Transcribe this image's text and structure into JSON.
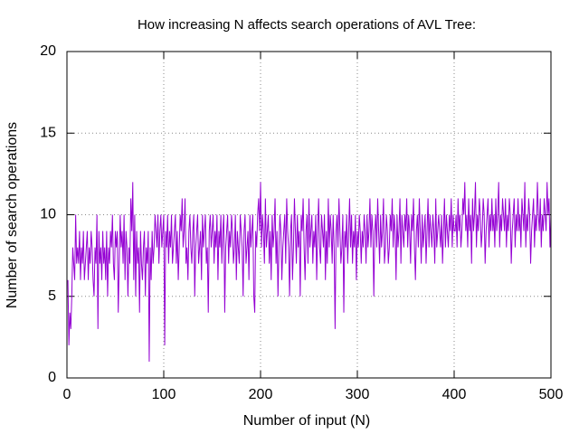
{
  "chart_data": {
    "type": "line",
    "title": "How increasing N affects search operations of AVL Tree:",
    "x_label": "Number of input (N)",
    "y_label": "Number of search operations",
    "color": "#9400d3",
    "grid": true,
    "xlim": [
      0,
      500
    ],
    "xticks": [
      0,
      100,
      200,
      300,
      400,
      500
    ],
    "ylim": [
      0,
      20
    ],
    "yticks": [
      0,
      5,
      10,
      15,
      20
    ],
    "x": [
      1,
      2,
      3,
      4,
      5,
      6,
      7,
      8,
      9,
      10,
      11,
      12,
      13,
      14,
      15,
      16,
      17,
      18,
      19,
      20,
      21,
      22,
      23,
      24,
      25,
      26,
      27,
      28,
      29,
      30,
      31,
      32,
      33,
      34,
      35,
      36,
      37,
      38,
      39,
      40,
      41,
      42,
      43,
      44,
      45,
      46,
      47,
      48,
      49,
      50,
      51,
      52,
      53,
      54,
      55,
      56,
      57,
      58,
      59,
      60,
      61,
      62,
      63,
      64,
      65,
      66,
      67,
      68,
      69,
      70,
      71,
      72,
      73,
      74,
      75,
      76,
      77,
      78,
      79,
      80,
      81,
      82,
      83,
      84,
      85,
      86,
      87,
      88,
      89,
      90,
      91,
      92,
      93,
      94,
      95,
      96,
      97,
      98,
      99,
      100,
      101,
      102,
      103,
      104,
      105,
      106,
      107,
      108,
      109,
      110,
      111,
      112,
      113,
      114,
      115,
      116,
      117,
      118,
      119,
      120,
      121,
      122,
      123,
      124,
      125,
      126,
      127,
      128,
      129,
      130,
      131,
      132,
      133,
      134,
      135,
      136,
      137,
      138,
      139,
      140,
      141,
      142,
      143,
      144,
      145,
      146,
      147,
      148,
      149,
      150,
      151,
      152,
      153,
      154,
      155,
      156,
      157,
      158,
      159,
      160,
      161,
      162,
      163,
      164,
      165,
      166,
      167,
      168,
      169,
      170,
      171,
      172,
      173,
      174,
      175,
      176,
      177,
      178,
      179,
      180,
      181,
      182,
      183,
      184,
      185,
      186,
      187,
      188,
      189,
      190,
      191,
      192,
      193,
      194,
      195,
      196,
      197,
      198,
      199,
      200,
      201,
      202,
      203,
      204,
      205,
      206,
      207,
      208,
      209,
      210,
      211,
      212,
      213,
      214,
      215,
      216,
      217,
      218,
      219,
      220,
      221,
      222,
      223,
      224,
      225,
      226,
      227,
      228,
      229,
      230,
      231,
      232,
      233,
      234,
      235,
      236,
      237,
      238,
      239,
      240,
      241,
      242,
      243,
      244,
      245,
      246,
      247,
      248,
      249,
      250,
      251,
      252,
      253,
      254,
      255,
      256,
      257,
      258,
      259,
      260,
      261,
      262,
      263,
      264,
      265,
      266,
      267,
      268,
      269,
      270,
      271,
      272,
      273,
      274,
      275,
      276,
      277,
      278,
      279,
      280,
      281,
      282,
      283,
      284,
      285,
      286,
      287,
      288,
      289,
      290,
      291,
      292,
      293,
      294,
      295,
      296,
      297,
      298,
      299,
      300,
      301,
      302,
      303,
      304,
      305,
      306,
      307,
      308,
      309,
      310,
      311,
      312,
      313,
      314,
      315,
      316,
      317,
      318,
      319,
      320,
      321,
      322,
      323,
      324,
      325,
      326,
      327,
      328,
      329,
      330,
      331,
      332,
      333,
      334,
      335,
      336,
      337,
      338,
      339,
      340,
      341,
      342,
      343,
      344,
      345,
      346,
      347,
      348,
      349,
      350,
      351,
      352,
      353,
      354,
      355,
      356,
      357,
      358,
      359,
      360,
      361,
      362,
      363,
      364,
      365,
      366,
      367,
      368,
      369,
      370,
      371,
      372,
      373,
      374,
      375,
      376,
      377,
      378,
      379,
      380,
      381,
      382,
      383,
      384,
      385,
      386,
      387,
      388,
      389,
      390,
      391,
      392,
      393,
      394,
      395,
      396,
      397,
      398,
      399,
      400,
      401,
      402,
      403,
      404,
      405,
      406,
      407,
      408,
      409,
      410,
      411,
      412,
      413,
      414,
      415,
      416,
      417,
      418,
      419,
      420,
      421,
      422,
      423,
      424,
      425,
      426,
      427,
      428,
      429,
      430,
      431,
      432,
      433,
      434,
      435,
      436,
      437,
      438,
      439,
      440,
      441,
      442,
      443,
      444,
      445,
      446,
      447,
      448,
      449,
      450,
      451,
      452,
      453,
      454,
      455,
      456,
      457,
      458,
      459,
      460,
      461,
      462,
      463,
      464,
      465,
      466,
      467,
      468,
      469,
      470,
      471,
      472,
      473,
      474,
      475,
      476,
      477,
      478,
      479,
      480,
      481,
      482,
      483,
      484,
      485,
      486,
      487,
      488,
      489,
      490,
      491,
      492,
      493,
      494,
      495,
      496,
      497,
      498,
      499,
      500
    ],
    "values": [
      6,
      2,
      4,
      3,
      5,
      8,
      7,
      6,
      10,
      7,
      8,
      7,
      9,
      6,
      8,
      7,
      9,
      6,
      7,
      8,
      9,
      6,
      8,
      7,
      9,
      8,
      6,
      5,
      8,
      7,
      10,
      3,
      9,
      7,
      8,
      6,
      9,
      7,
      8,
      6,
      9,
      5,
      8,
      7,
      9,
      8,
      10,
      7,
      6,
      9,
      8,
      9,
      4,
      7,
      10,
      8,
      9,
      7,
      10,
      6,
      9,
      8,
      5,
      8,
      7,
      11,
      9,
      12,
      6,
      10,
      5,
      9,
      7,
      8,
      4,
      9,
      7,
      6,
      8,
      9,
      5,
      8,
      7,
      9,
      1,
      8,
      6,
      9,
      7,
      8,
      10,
      9,
      8,
      10,
      7,
      9,
      10,
      8,
      9,
      10,
      2,
      9,
      8,
      10,
      7,
      9,
      8,
      10,
      7,
      8,
      9,
      10,
      7,
      9,
      6,
      8,
      10,
      9,
      11,
      8,
      9,
      11,
      7,
      8,
      6,
      9,
      10,
      8,
      7,
      9,
      10,
      5,
      8,
      9,
      10,
      7,
      8,
      9,
      6,
      10,
      8,
      9,
      10,
      7,
      8,
      4,
      9,
      10,
      8,
      9,
      10,
      7,
      9,
      8,
      10,
      6,
      9,
      8,
      10,
      7,
      9,
      10,
      4,
      8,
      9,
      10,
      7,
      9,
      8,
      10,
      9,
      7,
      8,
      10,
      6,
      9,
      8,
      7,
      10,
      9,
      8,
      5,
      9,
      10,
      7,
      8,
      9,
      6,
      10,
      8,
      9,
      10,
      5,
      4,
      9,
      8,
      10,
      11,
      9,
      12,
      8,
      10,
      9,
      7,
      11,
      8,
      9,
      10,
      7,
      9,
      6,
      10,
      8,
      9,
      11,
      7,
      9,
      5,
      8,
      10,
      9,
      6,
      8,
      9,
      10,
      7,
      11,
      9,
      8,
      5,
      9,
      10,
      6,
      8,
      11,
      9,
      7,
      10,
      8,
      9,
      5,
      10,
      9,
      11,
      8,
      6,
      9,
      10,
      7,
      11,
      8,
      9,
      10,
      7,
      9,
      8,
      10,
      6,
      9,
      11,
      8,
      7,
      10,
      9,
      8,
      10,
      6,
      9,
      7,
      11,
      8,
      10,
      9,
      7,
      10,
      8,
      3,
      9,
      10,
      8,
      11,
      9,
      7,
      8,
      10,
      4,
      9,
      8,
      10,
      7,
      9,
      11,
      8,
      10,
      7,
      9,
      8,
      10,
      6,
      9,
      8,
      10,
      9,
      7,
      9,
      8,
      10,
      9,
      7,
      10,
      8,
      9,
      11,
      8,
      10,
      9,
      5,
      9,
      10,
      8,
      11,
      9,
      7,
      10,
      8,
      9,
      11,
      7,
      8,
      10,
      9,
      7,
      8,
      10,
      9,
      11,
      8,
      10,
      9,
      6,
      10,
      8,
      9,
      11,
      7,
      10,
      9,
      8,
      10,
      9,
      11,
      8,
      10,
      9,
      7,
      10,
      9,
      11,
      8,
      6,
      9,
      10,
      8,
      11,
      9,
      7,
      10,
      8,
      9,
      10,
      7,
      9,
      11,
      8,
      10,
      9,
      8,
      10,
      9,
      7,
      11,
      8,
      9,
      10,
      9,
      8,
      10,
      7,
      9,
      11,
      8,
      10,
      9,
      8,
      10,
      9,
      11,
      8,
      10,
      9,
      9,
      10,
      8,
      11,
      9,
      10,
      8,
      9,
      11,
      10,
      12,
      9,
      10,
      8,
      11,
      9,
      10,
      7,
      11,
      9,
      10,
      12,
      8,
      10,
      9,
      11,
      10,
      8,
      9,
      11,
      10,
      7,
      9,
      10,
      11,
      8,
      10,
      9,
      11,
      9,
      10,
      8,
      11,
      9,
      10,
      12,
      8,
      10,
      9,
      11,
      10,
      9,
      11,
      8,
      10,
      9,
      11,
      10,
      7,
      9,
      10,
      11,
      8,
      10,
      9,
      11,
      9,
      10,
      8,
      11,
      10,
      9,
      12,
      8,
      10,
      9,
      11,
      10,
      7,
      9,
      10,
      11,
      8,
      10,
      9,
      12,
      10,
      9,
      11,
      8,
      10,
      9,
      11,
      10,
      9,
      12,
      10,
      11,
      8,
      10
    ]
  }
}
